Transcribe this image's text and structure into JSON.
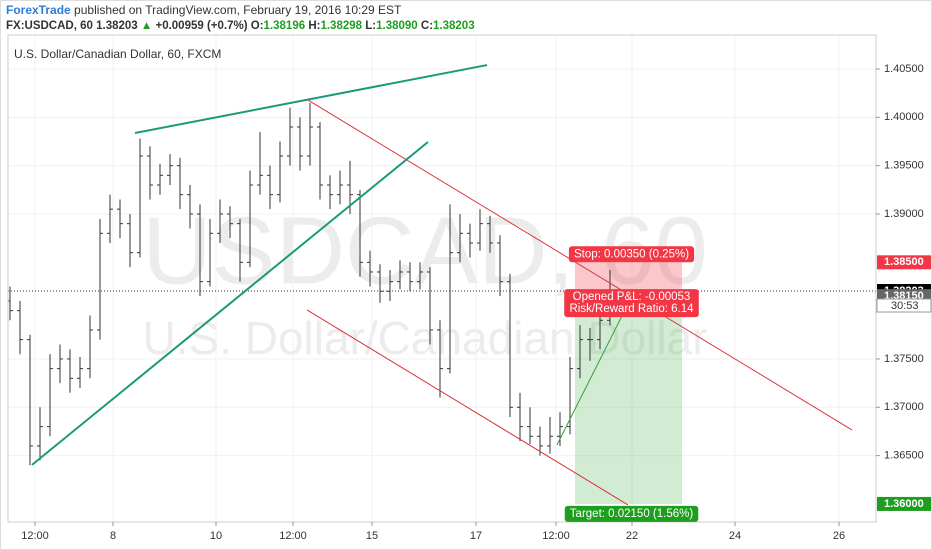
{
  "header": {
    "author": "ForexTrade",
    "published": "published on TradingView.com, February 19, 2016 10:29 EST",
    "symbol": "FX:USDCAD, 60",
    "last": "1.38203",
    "change": "+0.00959 (+0.7%)",
    "o_label": "O:",
    "o": "1.38196",
    "h_label": "H:",
    "h": "1.38298",
    "l_label": "L:",
    "l": "1.38090",
    "c_label": "C:",
    "c": "1.38203"
  },
  "chart_data": {
    "type": "ohlc",
    "subtitle": "U.S. Dollar/Canadian Dollar, 60, FXCM",
    "watermark": "USDCAD, 60",
    "watermark_sub": "U.S. Dollar/Canadian Dollar",
    "color": "#333333",
    "xlim": [
      -0.2,
      86.6
    ],
    "xticks": [
      {
        "value": 2.5,
        "label": "12:00"
      },
      {
        "value": 10.3,
        "label": "8"
      },
      {
        "value": 20.6,
        "label": "10"
      },
      {
        "value": 28.3,
        "label": "12:00"
      },
      {
        "value": 36.2,
        "label": "15"
      },
      {
        "value": 46.6,
        "label": "17"
      },
      {
        "value": 54.6,
        "label": "12:00"
      },
      {
        "value": 62.2,
        "label": "22"
      },
      {
        "value": 72.5,
        "label": "24"
      },
      {
        "value": 82.9,
        "label": "26"
      }
    ],
    "ylim": [
      1.35813,
      1.40852
    ],
    "yticks": [
      {
        "value": 1.405,
        "label": "1.40500"
      },
      {
        "value": 1.4,
        "label": "1.40000"
      },
      {
        "value": 1.395,
        "label": "1.39500"
      },
      {
        "value": 1.39,
        "label": "1.39000"
      },
      {
        "value": 1.375,
        "label": "1.37500"
      },
      {
        "value": 1.37,
        "label": "1.37000"
      },
      {
        "value": 1.365,
        "label": "1.36500"
      }
    ],
    "grid": true,
    "ohlc": [
      [
        1.381,
        1.3825,
        1.379,
        1.38
      ],
      [
        1.38,
        1.381,
        1.3755,
        1.377
      ],
      [
        1.377,
        1.3775,
        1.364,
        1.366
      ],
      [
        1.366,
        1.37,
        1.3645,
        1.368
      ],
      [
        1.368,
        1.3755,
        1.367,
        1.374
      ],
      [
        1.374,
        1.3765,
        1.3725,
        1.375
      ],
      [
        1.375,
        1.376,
        1.3715,
        1.373
      ],
      [
        1.373,
        1.3752,
        1.372,
        1.374
      ],
      [
        1.374,
        1.3795,
        1.373,
        1.378
      ],
      [
        1.378,
        1.3895,
        1.377,
        1.388
      ],
      [
        1.388,
        1.392,
        1.387,
        1.3905
      ],
      [
        1.3905,
        1.3915,
        1.3875,
        1.389
      ],
      [
        1.389,
        1.39,
        1.3845,
        1.386
      ],
      [
        1.386,
        1.3978,
        1.3855,
        1.396
      ],
      [
        1.396,
        1.397,
        1.3915,
        1.393
      ],
      [
        1.393,
        1.3952,
        1.392,
        1.394
      ],
      [
        1.394,
        1.3962,
        1.393,
        1.395
      ],
      [
        1.395,
        1.3958,
        1.3905,
        1.392
      ],
      [
        1.392,
        1.393,
        1.3885,
        1.39
      ],
      [
        1.39,
        1.391,
        1.3815,
        1.383
      ],
      [
        1.383,
        1.3895,
        1.3825,
        1.388
      ],
      [
        1.388,
        1.3915,
        1.387,
        1.39
      ],
      [
        1.39,
        1.3908,
        1.3875,
        1.389
      ],
      [
        1.389,
        1.3895,
        1.383,
        1.385
      ],
      [
        1.385,
        1.3945,
        1.3845,
        1.393
      ],
      [
        1.393,
        1.3985,
        1.392,
        1.394
      ],
      [
        1.394,
        1.395,
        1.3905,
        1.392
      ],
      [
        1.392,
        1.3975,
        1.3912,
        1.396
      ],
      [
        1.396,
        1.401,
        1.395,
        1.399
      ],
      [
        1.399,
        1.4,
        1.3945,
        1.396
      ],
      [
        1.396,
        1.4015,
        1.395,
        1.399
      ],
      [
        1.399,
        1.3995,
        1.3915,
        1.393
      ],
      [
        1.393,
        1.394,
        1.3905,
        1.392
      ],
      [
        1.392,
        1.3945,
        1.391,
        1.393
      ],
      [
        1.393,
        1.3955,
        1.39,
        1.392
      ],
      [
        1.392,
        1.3925,
        1.3835,
        1.385
      ],
      [
        1.385,
        1.3862,
        1.3825,
        1.384
      ],
      [
        1.384,
        1.3848,
        1.3808,
        1.382
      ],
      [
        1.382,
        1.3842,
        1.381,
        1.383
      ],
      [
        1.383,
        1.3852,
        1.3822,
        1.384
      ],
      [
        1.384,
        1.385,
        1.382,
        1.383
      ],
      [
        1.383,
        1.385,
        1.3822,
        1.384
      ],
      [
        1.384,
        1.3845,
        1.3765,
        1.378
      ],
      [
        1.378,
        1.379,
        1.371,
        1.374
      ],
      [
        1.374,
        1.391,
        1.3735,
        1.386
      ],
      [
        1.386,
        1.39,
        1.385,
        1.388
      ],
      [
        1.388,
        1.389,
        1.3855,
        1.387
      ],
      [
        1.387,
        1.3905,
        1.3862,
        1.389
      ],
      [
        1.389,
        1.3898,
        1.386,
        1.387
      ],
      [
        1.387,
        1.3878,
        1.3815,
        1.383
      ],
      [
        1.383,
        1.3838,
        1.369,
        1.37
      ],
      [
        1.37,
        1.3715,
        1.3665,
        1.368
      ],
      [
        1.368,
        1.37,
        1.3662,
        1.367
      ],
      [
        1.367,
        1.368,
        1.365,
        1.366
      ],
      [
        1.366,
        1.369,
        1.3652,
        1.367
      ],
      [
        1.367,
        1.3695,
        1.366,
        1.368
      ],
      [
        1.368,
        1.3752,
        1.3672,
        1.374
      ],
      [
        1.374,
        1.3785,
        1.373,
        1.377
      ],
      [
        1.377,
        1.3782,
        1.3748,
        1.377
      ],
      [
        1.377,
        1.38,
        1.376,
        1.379
      ],
      [
        1.379,
        1.3842,
        1.3785,
        1.38203
      ]
    ],
    "drawings": [
      {
        "color": "#1a9a7a",
        "width": 2,
        "x": [
          12.5,
          47.7
        ],
        "y": [
          1.39838,
          1.40541
        ]
      },
      {
        "color": "#1a9a7a",
        "width": 2,
        "x": [
          2.2,
          41.8
        ],
        "y": [
          1.36404,
          1.39745
        ]
      },
      {
        "color": "#d9363e",
        "width": 1,
        "x": [
          29.8,
          84.2
        ],
        "y": [
          1.40179,
          1.36766
        ]
      },
      {
        "color": "#d9363e",
        "width": 1,
        "x": [
          29.7,
          61.8
        ],
        "y": [
          1.38007,
          1.3599
        ]
      },
      {
        "color": "#3a9a3a",
        "width": 1,
        "x": [
          54.7,
          61.5
        ],
        "y": [
          1.36611,
          1.38007
        ]
      }
    ],
    "last_price": 1.38203,
    "position": {
      "x": [
        56.5,
        67.2
      ],
      "entry": 1.3815,
      "stop": 1.385,
      "target": 1.36,
      "stop_label": "Stop: 0.00350 (0.25%)",
      "pnl_label": "Opened P&L: -0.00053",
      "rr_label": "Risk/Reward Ratio: 6.14",
      "target_label": "Target: 0.02150 (1.56%)"
    },
    "price_tags": [
      {
        "value": 1.385,
        "label": "1.38500",
        "color": "#f23645"
      },
      {
        "value": 1.38203,
        "label": "1.38203",
        "color": "#000000"
      },
      {
        "value": 1.3815,
        "label": "1.38150",
        "color": "#666666"
      },
      {
        "value": 1.36,
        "label": "1.36000",
        "color": "#1e9e1e"
      }
    ],
    "countdown": "30:53"
  }
}
